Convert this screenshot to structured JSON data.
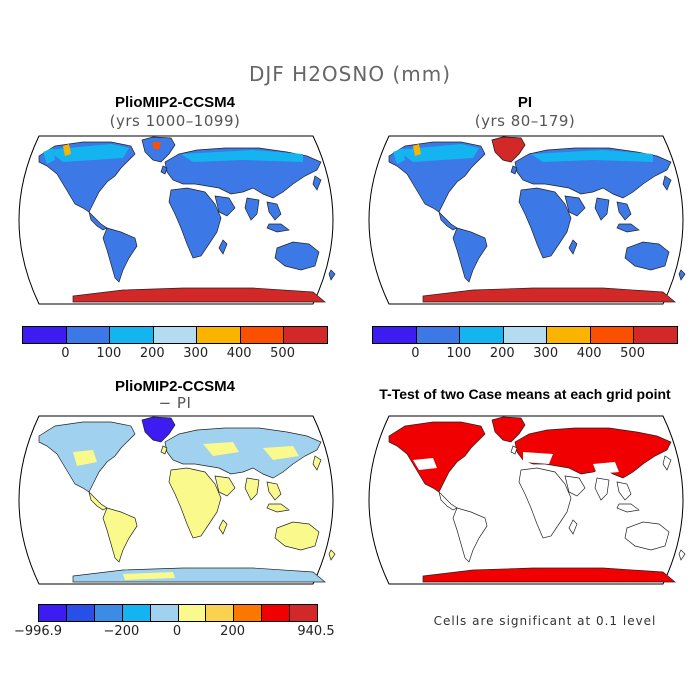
{
  "title": "DJF H2OSNO (mm)",
  "panels": [
    {
      "title": "PlioMIP2-CCSM4",
      "subtitle": "(yrs 1000–1099)"
    },
    {
      "title": "PI",
      "subtitle": "(yrs 80–179)"
    },
    {
      "title": "PlioMIP2-CCSM4",
      "subtitle": "− PI"
    },
    {
      "title": "T-Test of two Case means at each grid point",
      "subtitle": ""
    }
  ],
  "colorbar_top": {
    "colors": [
      "#3c1cf0",
      "#3c78e6",
      "#14b4f0",
      "#b4dcf0",
      "#fab400",
      "#fa5000",
      "#d22828"
    ],
    "ticks": [
      "0",
      "100",
      "200",
      "300",
      "400",
      "500"
    ]
  },
  "colorbar_diff": {
    "colors": [
      "#3c1cf0",
      "#2850e6",
      "#3c8ce6",
      "#14b4f0",
      "#a0d2f0",
      "#fafa8c",
      "#fad250",
      "#fa7800",
      "#f00000",
      "#d22828"
    ],
    "ticks": [
      "−996.9",
      "−200",
      "0",
      "200",
      "940.5"
    ]
  },
  "significance_note": "Cells are significant at 0.1 level",
  "legend_colors": {
    "land_snow_free": "#3c78e6",
    "antarctica": "#d22828",
    "diff_positive": "#fafa8c",
    "diff_small": "#a0d2f0",
    "significant": "#f00000"
  }
}
